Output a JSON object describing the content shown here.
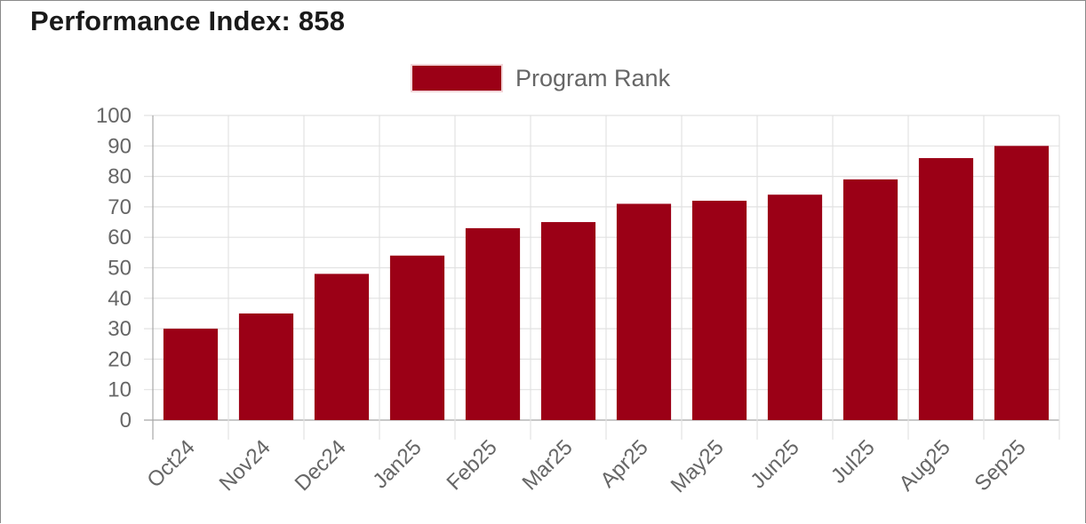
{
  "page_title": "Performance Index: 858",
  "chart_data": {
    "type": "bar",
    "categories": [
      "Oct24",
      "Nov24",
      "Dec24",
      "Jan25",
      "Feb25",
      "Mar25",
      "Apr25",
      "May25",
      "Jun25",
      "Jul25",
      "Aug25",
      "Sep25"
    ],
    "series": [
      {
        "name": "Program Rank",
        "color": "#9b0016",
        "values": [
          30,
          35,
          48,
          54,
          63,
          65,
          71,
          72,
          74,
          79,
          86,
          90
        ]
      }
    ],
    "ylim": [
      0,
      100
    ],
    "yticks": [
      0,
      10,
      20,
      30,
      40,
      50,
      60,
      70,
      80,
      90,
      100
    ],
    "grid": true,
    "legend_position": "top-center",
    "xlabel": "",
    "ylabel": ""
  }
}
